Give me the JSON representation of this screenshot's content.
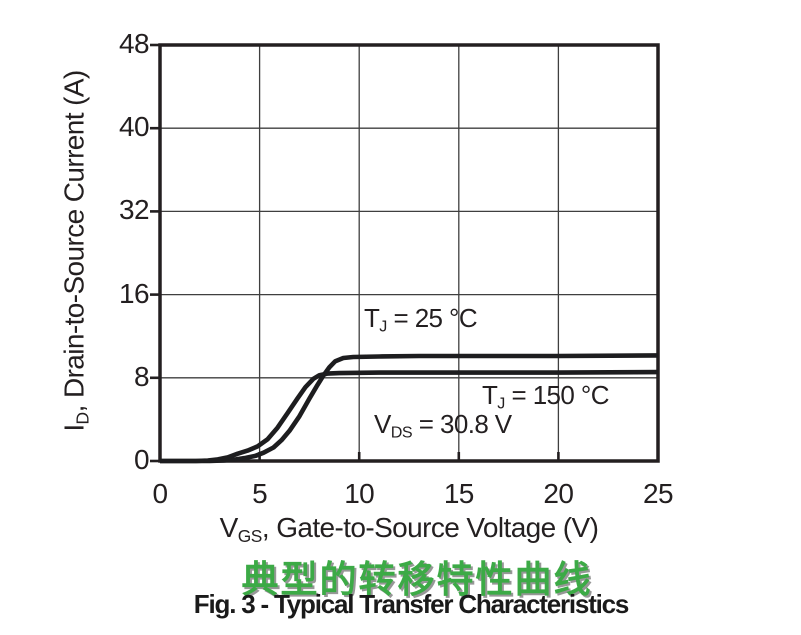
{
  "figure": {
    "caption_cn": "典型的转移特性曲线",
    "caption": "Fig. 3 - Typical Transfer Characteristics"
  },
  "colors": {
    "ink": "#231f20",
    "grid": "#3f3f3f",
    "curve": "#1d1d1f",
    "title_green": "#3CAA46",
    "background": "#ffffff"
  },
  "chart_data": {
    "type": "line",
    "title": "",
    "xlabel": {
      "base": "V",
      "sub": "GS",
      "rest": ", Gate-to-Source Voltage (V)"
    },
    "ylabel": {
      "base": "I",
      "sub": "D",
      "rest": ", Drain-to-Source Current (A)"
    },
    "xlim": [
      0,
      25
    ],
    "x_ticks": [
      0,
      5,
      10,
      15,
      20,
      25
    ],
    "y_ticks": [
      0,
      8,
      16,
      32,
      40,
      48
    ],
    "grid": true,
    "legend": "none",
    "annotations": {
      "tj25": {
        "base": "T",
        "sub": "J",
        "rest": " = 25 °C"
      },
      "tj150": {
        "base": "T",
        "sub": "J",
        "rest": " = 150 °C"
      },
      "vds": {
        "base": "V",
        "sub": "DS",
        "rest": " = 30.8 V"
      }
    },
    "series": [
      {
        "name": "TJ = 25 °C",
        "points": [
          [
            0,
            0
          ],
          [
            2.5,
            0
          ],
          [
            3.2,
            0.05
          ],
          [
            3.8,
            0.15
          ],
          [
            4.3,
            0.3
          ],
          [
            4.8,
            0.5
          ],
          [
            5.2,
            0.8
          ],
          [
            5.7,
            1.3
          ],
          [
            6.1,
            2.0
          ],
          [
            6.5,
            2.9
          ],
          [
            7.0,
            4.3
          ],
          [
            7.5,
            6.0
          ],
          [
            7.9,
            7.3
          ],
          [
            8.2,
            8.2
          ],
          [
            8.5,
            9.0
          ],
          [
            8.8,
            9.6
          ],
          [
            9.2,
            9.9
          ],
          [
            9.7,
            10.0
          ],
          [
            11,
            10.05
          ],
          [
            13,
            10.1
          ],
          [
            16,
            10.1
          ],
          [
            20,
            10.1
          ],
          [
            25,
            10.15
          ]
        ]
      },
      {
        "name": "TJ = 150 °C",
        "points": [
          [
            0,
            0
          ],
          [
            1.8,
            0
          ],
          [
            2.4,
            0.05
          ],
          [
            2.9,
            0.15
          ],
          [
            3.4,
            0.35
          ],
          [
            3.9,
            0.7
          ],
          [
            4.4,
            1.0
          ],
          [
            4.9,
            1.4
          ],
          [
            5.4,
            2.1
          ],
          [
            5.9,
            3.2
          ],
          [
            6.4,
            4.6
          ],
          [
            6.9,
            6.0
          ],
          [
            7.3,
            7.1
          ],
          [
            7.7,
            7.9
          ],
          [
            8.0,
            8.25
          ],
          [
            8.4,
            8.4
          ],
          [
            9.0,
            8.45
          ],
          [
            11,
            8.5
          ],
          [
            15,
            8.5
          ],
          [
            20,
            8.5
          ],
          [
            25,
            8.55
          ]
        ]
      }
    ]
  }
}
